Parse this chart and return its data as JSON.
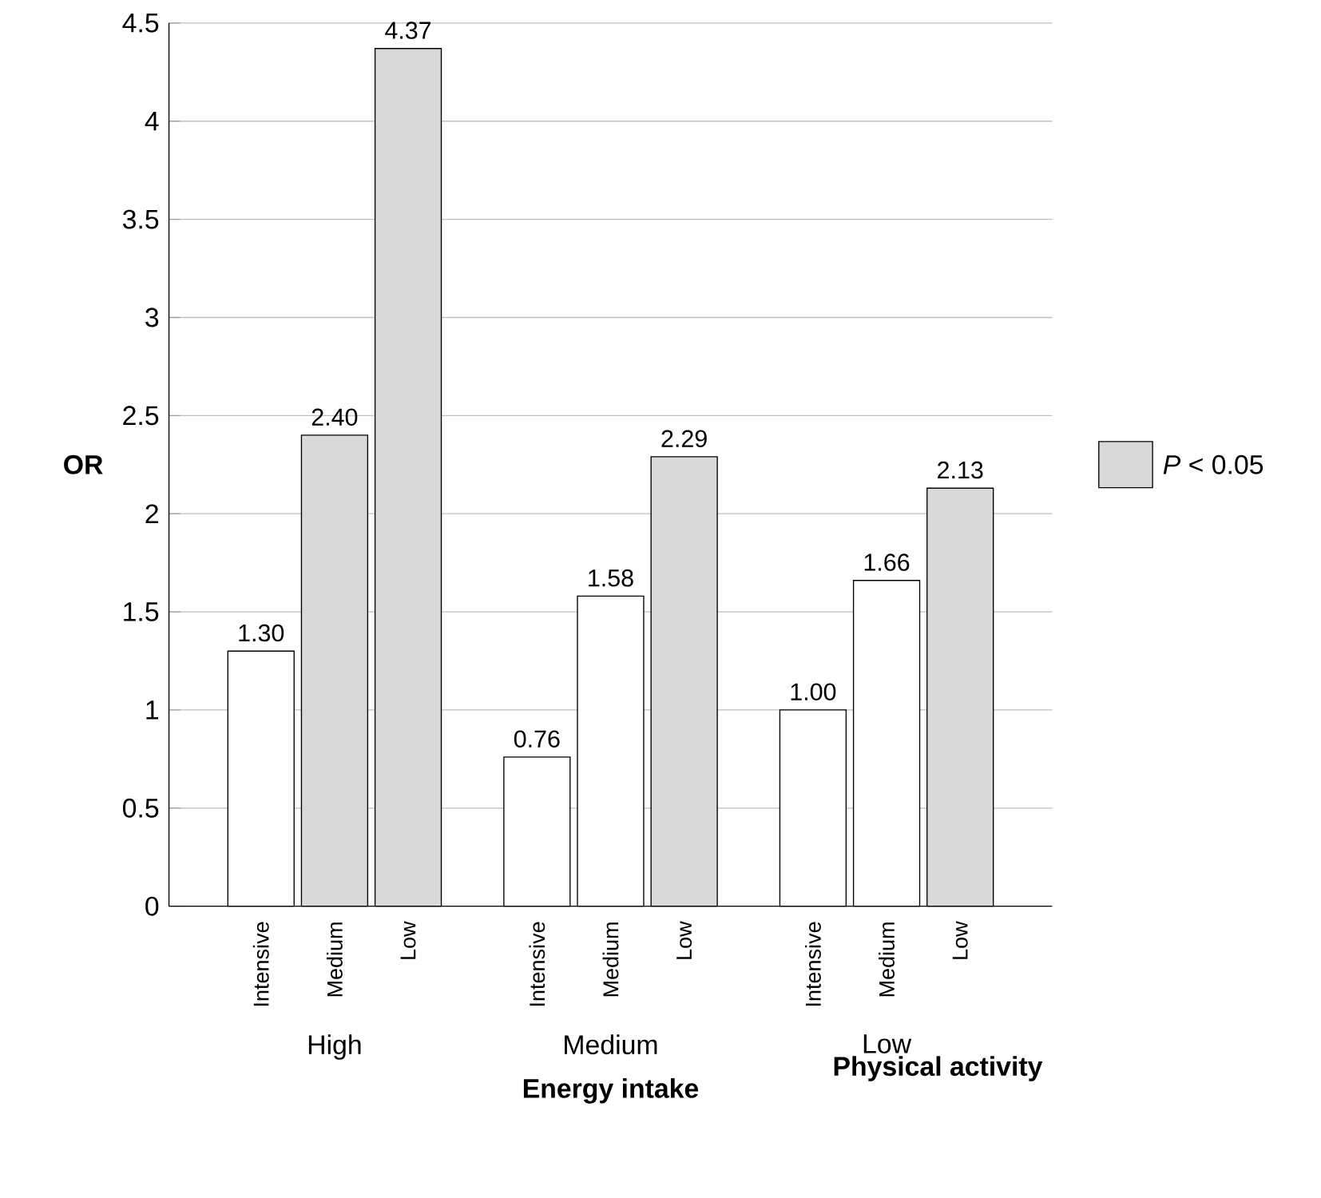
{
  "chart_data": {
    "type": "bar",
    "ylabel": "OR",
    "xlabel": "Energy intake",
    "legend_title": "Physical activity",
    "categories": [
      "High",
      "Medium",
      "Low"
    ],
    "series": [
      {
        "name": "Intensive",
        "colors": [
          "#ffffff",
          "#ffffff",
          "#ffffff"
        ],
        "values": [
          1.3,
          0.76,
          1.0
        ],
        "value_labels": [
          "1.30",
          "0.76",
          "1.00"
        ]
      },
      {
        "name": "Medium",
        "colors": [
          "#d9d9d9",
          "#ffffff",
          "#ffffff"
        ],
        "values": [
          2.4,
          1.58,
          1.66
        ],
        "value_labels": [
          "2.40",
          "1.58",
          "1.66"
        ]
      },
      {
        "name": "Low",
        "colors": [
          "#d9d9d9",
          "#d9d9d9",
          "#d9d9d9"
        ],
        "values": [
          4.37,
          2.29,
          2.13
        ],
        "value_labels": [
          "4.37",
          "2.29",
          "2.13"
        ]
      }
    ],
    "ylim": [
      0,
      4.5
    ],
    "yticks": [
      0,
      0.5,
      1,
      1.5,
      2,
      2.5,
      3,
      3.5,
      4,
      4.5
    ],
    "grid": "y",
    "annotations": [
      "*P* < 0.05"
    ]
  }
}
